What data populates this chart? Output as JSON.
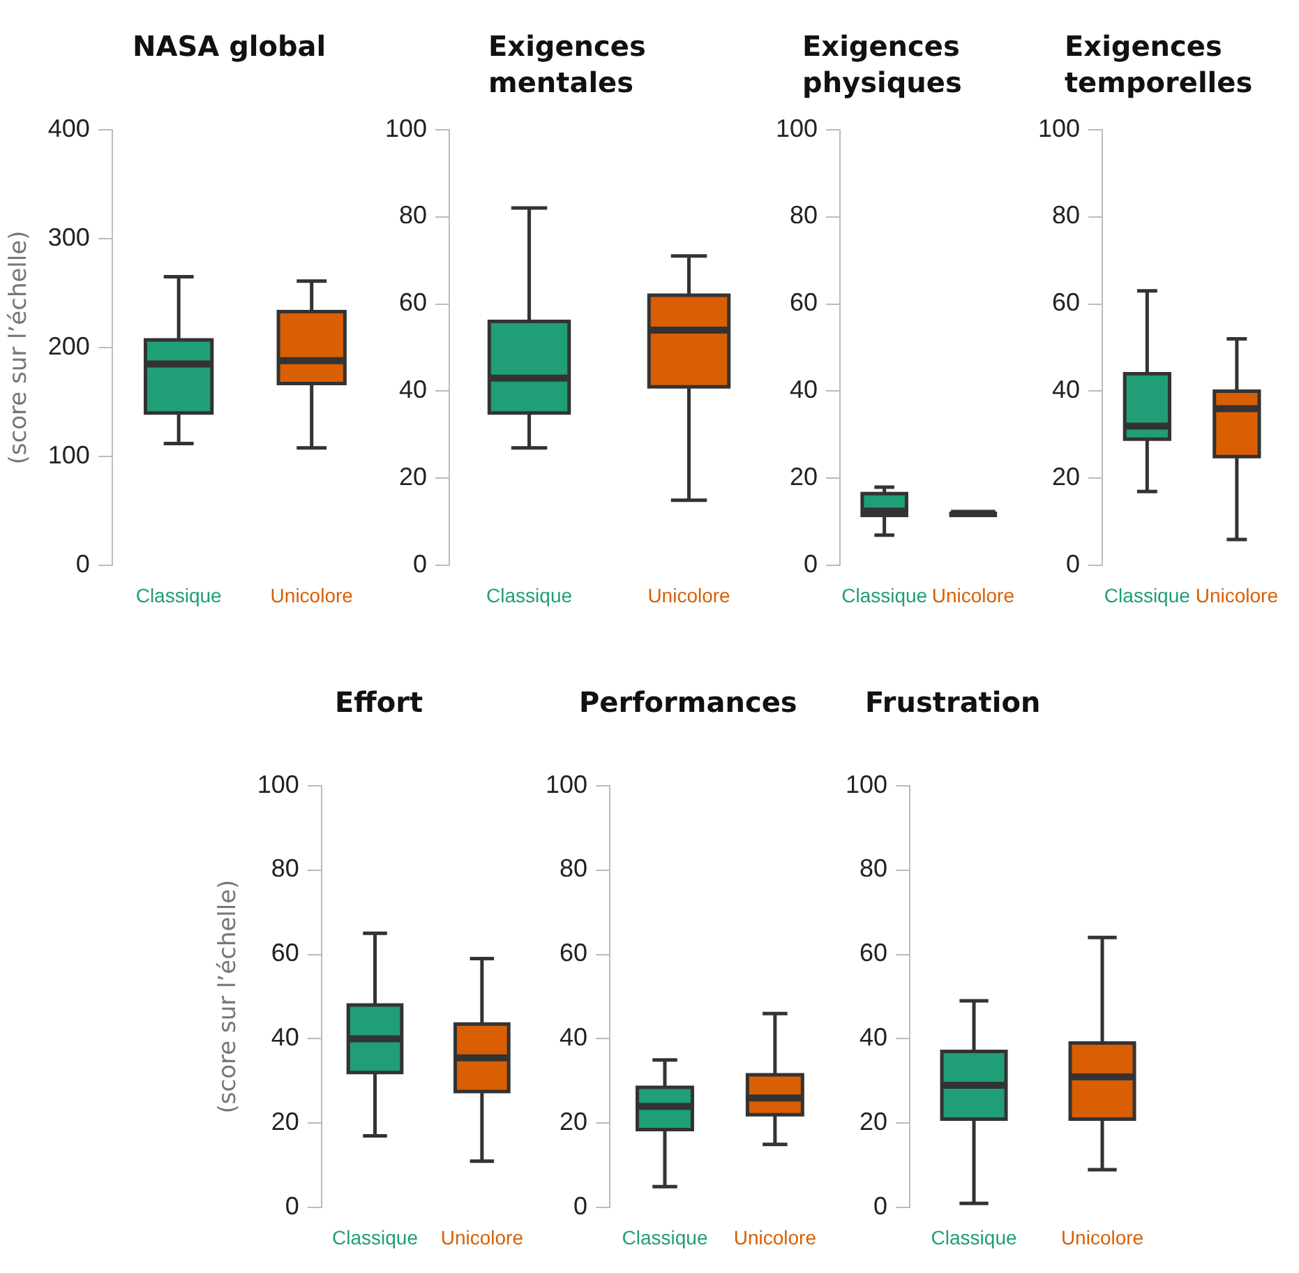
{
  "chart_data": [
    {
      "type": "box",
      "title": "NASA global",
      "ylabel": "(score sur l’échelle)",
      "categories": [
        "Classique",
        "Unicolore"
      ],
      "colors": [
        "#1f9e77",
        "#d95f02"
      ],
      "ylim": [
        0,
        400
      ],
      "yticks": [
        0,
        100,
        200,
        300,
        400
      ],
      "boxes": [
        {
          "low": 112,
          "q1": 140,
          "median": 185,
          "q3": 207,
          "high": 265
        },
        {
          "low": 108,
          "q1": 167,
          "median": 188,
          "q3": 233,
          "high": 261
        }
      ]
    },
    {
      "type": "box",
      "title": "Exigences mentales",
      "categories": [
        "Classique",
        "Unicolore"
      ],
      "colors": [
        "#1f9e77",
        "#d95f02"
      ],
      "ylim": [
        0,
        100
      ],
      "yticks": [
        0,
        20,
        40,
        60,
        80,
        100
      ],
      "boxes": [
        {
          "low": 27,
          "q1": 35,
          "median": 43,
          "q3": 56,
          "high": 82
        },
        {
          "low": 15,
          "q1": 41,
          "median": 54,
          "q3": 62,
          "high": 71
        }
      ]
    },
    {
      "type": "box",
      "title": "Exigences physiques",
      "categories": [
        "Classique",
        "Unicolore"
      ],
      "colors": [
        "#1f9e77",
        "#d95f02"
      ],
      "ylim": [
        0,
        100
      ],
      "yticks": [
        0,
        20,
        40,
        60,
        80,
        100
      ],
      "boxes": [
        {
          "low": 7,
          "q1": 11.5,
          "median": 12.5,
          "q3": 16.5,
          "high": 18
        },
        {
          "low": 11.5,
          "q1": 11.5,
          "median": 12,
          "q3": 12,
          "high": 12
        }
      ]
    },
    {
      "type": "box",
      "title": "Exigences temporelles",
      "categories": [
        "Classique",
        "Unicolore"
      ],
      "colors": [
        "#1f9e77",
        "#d95f02"
      ],
      "ylim": [
        0,
        100
      ],
      "yticks": [
        0,
        20,
        40,
        60,
        80,
        100
      ],
      "boxes": [
        {
          "low": 17,
          "q1": 29,
          "median": 32,
          "q3": 44,
          "high": 63
        },
        {
          "low": 6,
          "q1": 25,
          "median": 36,
          "q3": 40,
          "high": 52
        }
      ]
    },
    {
      "type": "box",
      "title": "Effort",
      "ylabel": "(score sur l’échelle)",
      "categories": [
        "Classique",
        "Unicolore"
      ],
      "colors": [
        "#1f9e77",
        "#d95f02"
      ],
      "ylim": [
        0,
        100
      ],
      "yticks": [
        0,
        20,
        40,
        60,
        80,
        100
      ],
      "boxes": [
        {
          "low": 17,
          "q1": 32,
          "median": 40,
          "q3": 48,
          "high": 65
        },
        {
          "low": 11,
          "q1": 27.5,
          "median": 35.5,
          "q3": 43.5,
          "high": 59
        }
      ]
    },
    {
      "type": "box",
      "title": "Performances",
      "categories": [
        "Classique",
        "Unicolore"
      ],
      "colors": [
        "#1f9e77",
        "#d95f02"
      ],
      "ylim": [
        0,
        100
      ],
      "yticks": [
        0,
        20,
        40,
        60,
        80,
        100
      ],
      "boxes": [
        {
          "low": 5,
          "q1": 18.5,
          "median": 24,
          "q3": 28.5,
          "high": 35
        },
        {
          "low": 15,
          "q1": 22,
          "median": 26,
          "q3": 31.5,
          "high": 46
        }
      ]
    },
    {
      "type": "box",
      "title": "Frustration",
      "categories": [
        "Classique",
        "Unicolore"
      ],
      "colors": [
        "#1f9e77",
        "#d95f02"
      ],
      "ylim": [
        0,
        100
      ],
      "yticks": [
        0,
        20,
        40,
        60,
        80,
        100
      ],
      "boxes": [
        {
          "low": 1,
          "q1": 21,
          "median": 29,
          "q3": 37,
          "high": 49
        },
        {
          "low": 9,
          "q1": 21,
          "median": 31,
          "q3": 39,
          "high": 64
        }
      ]
    }
  ]
}
